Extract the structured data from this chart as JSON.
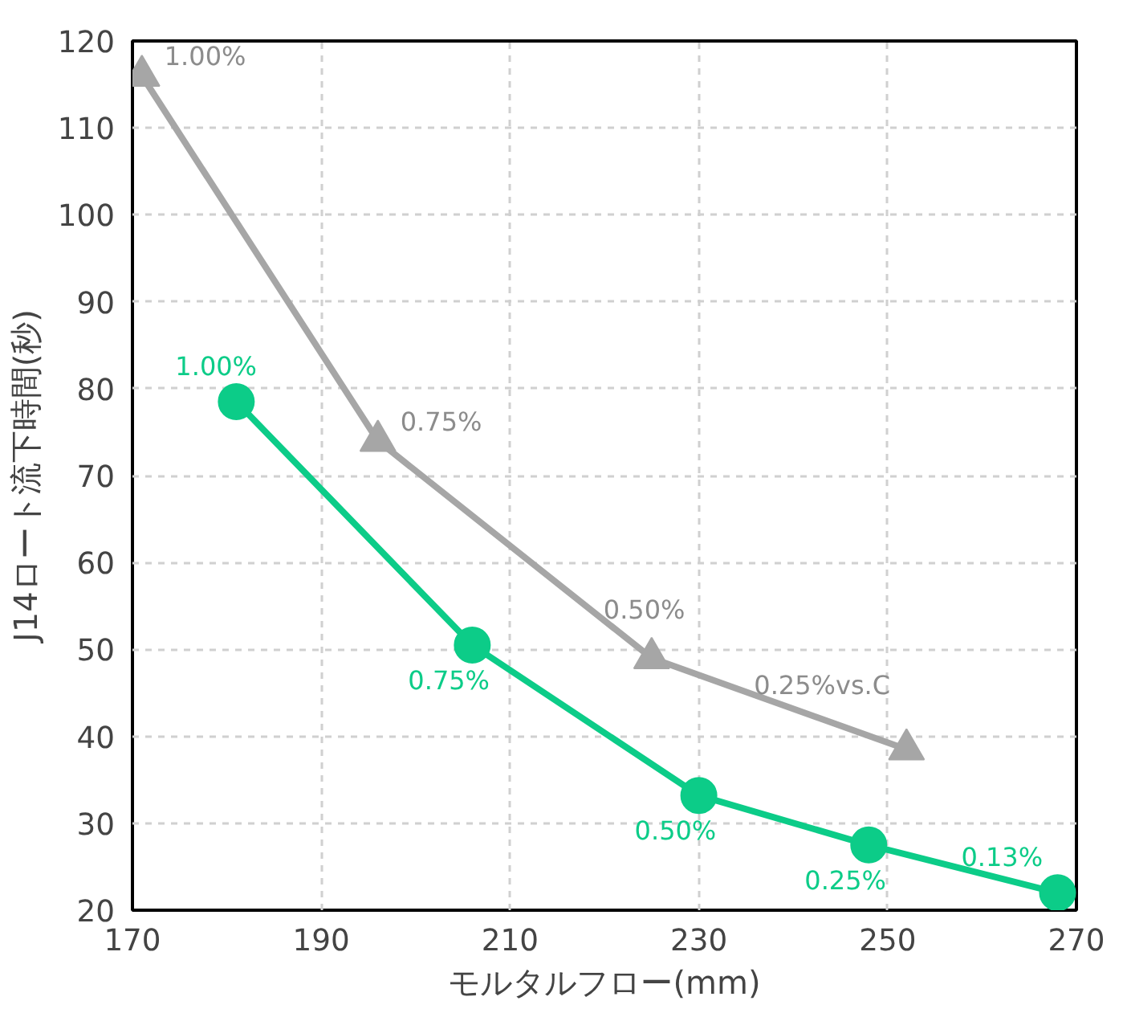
{
  "chart_data": {
    "type": "line",
    "xlabel": "モルタルフロー(mm)",
    "ylabel": "J14ロート流下時間(秒)",
    "xlim": [
      170,
      270
    ],
    "xticks": [
      170,
      190,
      210,
      230,
      250,
      270
    ],
    "ylim": [
      20,
      120
    ],
    "yticks": [
      20,
      30,
      40,
      50,
      60,
      70,
      80,
      90,
      100,
      110,
      120
    ],
    "grid": true,
    "line_style": "solid",
    "series": [
      {
        "color": "#a6a6a6",
        "marker": "triangle",
        "x": [
          171,
          196,
          225,
          252
        ],
        "values": [
          116,
          74,
          49,
          38.5
        ]
      },
      {
        "color": "#0ccc88",
        "marker": "circle",
        "x": [
          181,
          206,
          230,
          248,
          268
        ],
        "values": [
          78.5,
          50.5,
          33.2,
          27.5,
          22
        ]
      }
    ],
    "annotations": [
      {
        "text": "1.00%",
        "x": 171,
        "y": 116
      },
      {
        "text": "0.75%",
        "x": 196,
        "y": 74
      },
      {
        "text": "0.50%",
        "x": 225,
        "y": 49
      },
      {
        "text": "0.25%vs.C",
        "x": 252,
        "y": 38.5
      },
      {
        "text": "1.00%",
        "x": 181,
        "y": 78.5
      },
      {
        "text": "0.75%",
        "x": 206,
        "y": 50.5
      },
      {
        "text": "0.50%",
        "x": 230,
        "y": 33.2
      },
      {
        "text": "0.25%",
        "x": 248,
        "y": 27.5
      },
      {
        "text": "0.13%",
        "x": 268,
        "y": 22
      }
    ]
  }
}
